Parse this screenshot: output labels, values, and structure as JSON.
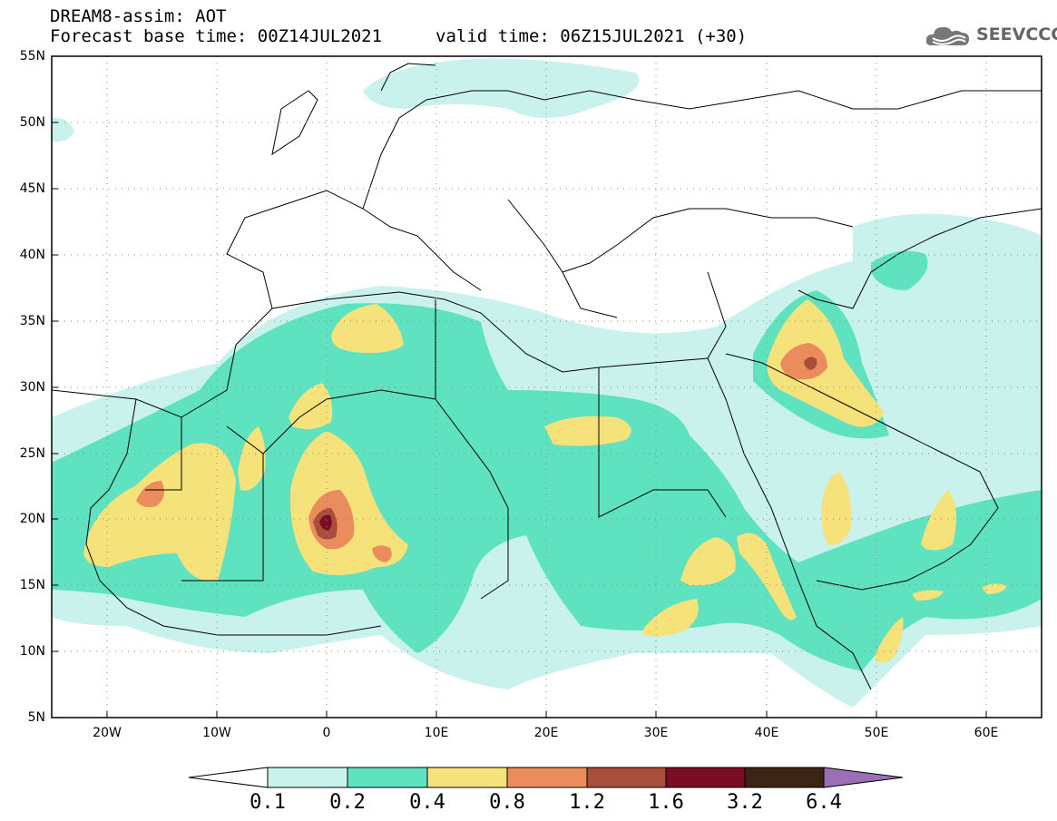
{
  "title_line1": "DREAM8-assim: AOT",
  "title_line2": "Forecast base time: 00Z14JUL2021",
  "valid_time": "valid time: 06Z15JUL2021 (+30)",
  "logo_text": "SEEVCCC",
  "latitude_labels": [
    "55N",
    "50N",
    "45N",
    "40N",
    "35N",
    "30N",
    "25N",
    "20N",
    "15N",
    "10N",
    "5N"
  ],
  "longitude_labels": [
    "20W",
    "10W",
    "0",
    "10E",
    "20E",
    "30E",
    "40E",
    "50E",
    "60E"
  ],
  "colorbar": {
    "labels": [
      "0.1",
      "0.2",
      "0.4",
      "0.8",
      "1.2",
      "1.6",
      "3.2",
      "6.4"
    ],
    "colors": [
      "#ffffff",
      "#c9f2ec",
      "#5ee2c0",
      "#f6e27a",
      "#ea8c5c",
      "#aa4e3c",
      "#7a0c24",
      "#3a2412",
      "#9b6fb6"
    ]
  },
  "palette": {
    "land_white": "#ffffff",
    "aot_0_1": "#c9f2ec",
    "aot_0_2": "#5ee2c0",
    "aot_0_4": "#f6e27a",
    "aot_0_8": "#ea8c5c",
    "aot_1_2": "#aa4e3c",
    "aot_1_6": "#7a0c24"
  }
}
